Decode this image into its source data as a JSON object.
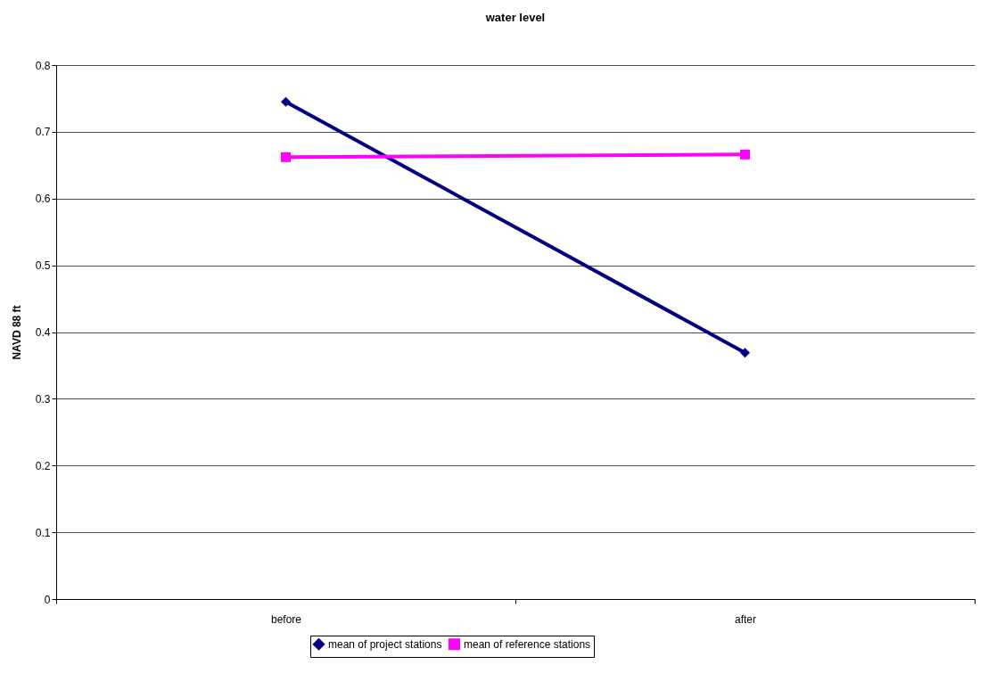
{
  "chart_data": {
    "type": "line",
    "title": "water level",
    "ylabel": "NAVD 88 ft",
    "categories": [
      "before",
      "after"
    ],
    "series": [
      {
        "name": "mean of project stations",
        "color": "#000080",
        "marker": "diamond",
        "values": [
          0.745,
          0.369
        ]
      },
      {
        "name": "mean of reference stations",
        "color": "#ff00ff",
        "marker": "square",
        "values": [
          0.662,
          0.666
        ]
      }
    ],
    "ylim": [
      0,
      0.8
    ],
    "yticks": [
      0,
      0.1,
      0.2,
      0.3,
      0.4,
      0.5,
      0.6,
      0.7,
      0.8
    ],
    "grid": "y",
    "legend": "bottom"
  }
}
